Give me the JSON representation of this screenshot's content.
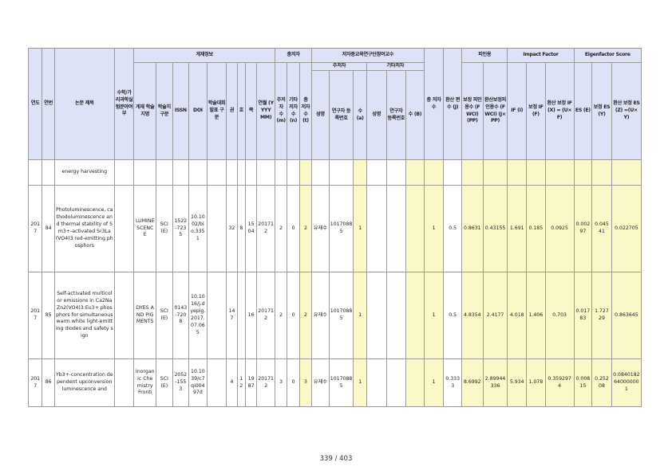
{
  "headers": {
    "year": "연도",
    "seq": "연번",
    "title": "논문 제목",
    "indicator": "수학/가리과학실험분야여부",
    "publication_info": "게재정보",
    "journal": "게재 학술지명",
    "category": "학술지 구분",
    "issn": "ISSN",
    "doi": "DOI",
    "discipline": "학술대회발표 구분",
    "volume": "권",
    "issue": "호",
    "page": "쪽",
    "date": "연월 (YYYY MM)",
    "authors_group": "총저자",
    "main_authors": "주저자 수 (m)",
    "other_authors": "기타 저자 수 (n)",
    "total_authors": "총 저자수 (t)",
    "participant_group": "저자중교육연구단참여교수",
    "main_sub": "주저자",
    "other_sub": "기타저자",
    "name1": "성명",
    "researcher_no1": "연구자 등록번호",
    "count_a": "수 (a)",
    "name2": "성명",
    "researcher_no2": "연구자 등록번호",
    "count_b": "수 (B)",
    "total_participant": "총 저자수",
    "converted": "환산 편수 (J)",
    "citation_group": "피인용",
    "fwci": "보정 피인용수 (FWCI) (PP)",
    "fwci_conv": "환산보정피인용수 (FWCI) (J×PP)",
    "if_group": "Impact Factor",
    "if_val": "IF (I)",
    "if_adj": "보정 IF (F)",
    "if_conv": "환산 보정 IF(X) = (U×F)",
    "es_group": "Eigenfactor Score",
    "es_val": "ES (E)",
    "es_adj": "보정 ES (Y)",
    "es_conv": "환산 보정 ES(Z) =(U×Y)"
  },
  "rows": [
    {
      "year": "",
      "seq": "",
      "title": "energy harvesting",
      "journal": "",
      "category": "",
      "issn": "",
      "doi": "",
      "volume": "",
      "issue": "",
      "page": "",
      "date": "",
      "m": "",
      "n": "",
      "t": "",
      "name": "",
      "reg": "",
      "a": "",
      "name2": "",
      "reg2": "",
      "b": "",
      "total": "",
      "j": "",
      "fwci": "",
      "fwci_conv": "",
      "if": "",
      "if_adj": "",
      "if_conv": "",
      "es": "",
      "es_adj": "",
      "es_conv": ""
    },
    {
      "year": "2017",
      "seq": "84",
      "title": "Photoluminescence, cathodoluminescence and thermal stability of Sm3+-activated Sr3La(VO4)3 red-emitting phosphors",
      "journal": "LUMINESCENCE",
      "category": "SCI(E)",
      "issn": "1522-7235",
      "doi": "10.1002/bio.3351",
      "volume": "32",
      "issue": "8",
      "page": "1504",
      "date": "201712",
      "m": "2",
      "n": "0",
      "t": "2",
      "name": "유재수",
      "reg": "10170885",
      "a": "1",
      "name2": "",
      "reg2": "",
      "b": "",
      "total": "1",
      "j": "0.5",
      "fwci": "0.8631",
      "fwci_conv": "0.43155",
      "if": "1.691",
      "if_adj": "0.185",
      "if_conv": "0.0925",
      "es": "0.00297",
      "es_adj": "0.04541",
      "es_conv": "0.022705"
    },
    {
      "year": "2017",
      "seq": "85",
      "title": "Self-activated multicolor emissions in Ca2NaZn2(VO4)3:Eu3+ phosphors for simultaneous warm white light-emitting diodes and safety sign",
      "journal": "DYES AND PIGMENTS",
      "category": "SCI(E)",
      "issn": "0143-7208",
      "doi": "10.1016/j.dyepig.2017.07.065",
      "volume": "147",
      "issue": "",
      "page": "16",
      "date": "201712",
      "m": "2",
      "n": "0",
      "t": "2",
      "name": "유재수",
      "reg": "10170885",
      "a": "1",
      "name2": "",
      "reg2": "",
      "b": "",
      "total": "1",
      "j": "0.5",
      "fwci": "4.8354",
      "fwci_conv": "2.4177",
      "if": "4.018",
      "if_adj": "1.406",
      "if_conv": "0.703",
      "es": "0.01783",
      "es_adj": "1.72729",
      "es_conv": "0.863645"
    },
    {
      "year": "2017",
      "seq": "86",
      "title": "Yb3+-concentration dependent upconversion luminescence and",
      "journal": "Inorganic Chemistry Fronti",
      "category": "SCI(E)",
      "issn": "2052-1553",
      "doi": "10.1039/c7qi00497d",
      "volume": "4",
      "issue": "12",
      "page": "1987",
      "date": "201712",
      "m": "3",
      "n": "0",
      "t": "3",
      "name": "유재수",
      "reg": "10170885",
      "a": "1",
      "name2": "",
      "reg2": "",
      "b": "",
      "total": "1",
      "j": "0.3333",
      "fwci": "8.6992",
      "fwci_conv": "2.89944336",
      "if": "5.934",
      "if_adj": "1.078",
      "if_conv": "0.3592974",
      "es": "0.00815",
      "es_adj": "0.25208",
      "es_conv": "0.0840182640000001"
    }
  ],
  "page_number": "339 / 403"
}
